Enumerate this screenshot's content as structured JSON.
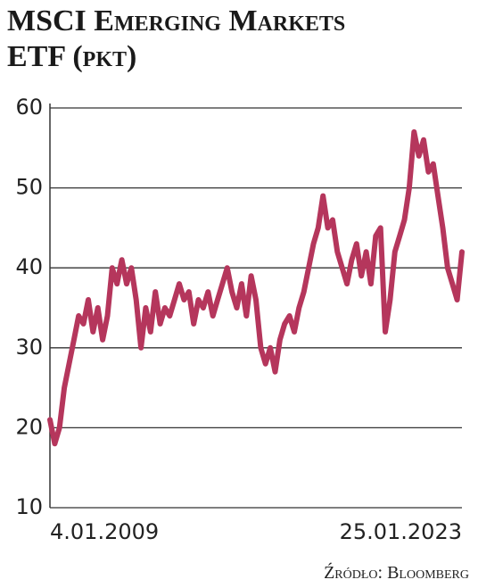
{
  "chart_data": {
    "type": "line",
    "title": [
      "MSCI Emerging Markets",
      "ETF (pkt)"
    ],
    "source": "Źródło: Bloomberg",
    "categories": [
      "4.01.2009",
      null,
      null,
      null,
      null,
      null,
      null,
      null,
      null,
      null,
      null,
      null,
      null,
      null,
      null,
      null,
      null,
      null,
      null,
      null,
      null,
      null,
      null,
      null,
      null,
      null,
      null,
      null,
      null,
      null,
      null,
      null,
      null,
      null,
      null,
      null,
      null,
      null,
      null,
      null,
      null,
      null,
      null,
      null,
      null,
      null,
      null,
      null,
      null,
      null,
      null,
      null,
      null,
      null,
      null,
      null,
      null,
      null,
      null,
      null,
      null,
      null,
      null,
      null,
      null,
      null,
      null,
      null,
      null,
      null,
      null,
      null,
      null,
      null,
      null,
      null,
      null,
      null,
      null,
      null,
      null,
      null,
      null,
      null,
      null,
      null,
      "25.01.2023"
    ],
    "series": [
      {
        "name": "MSCI Emerging Markets ETF",
        "color": "#b5365c",
        "values": [
          21,
          18,
          20,
          25,
          28,
          31,
          34,
          33,
          36,
          32,
          35,
          31,
          34,
          40,
          38,
          41,
          38,
          40,
          36,
          30,
          35,
          32,
          37,
          33,
          35,
          34,
          36,
          38,
          36,
          37,
          33,
          36,
          35,
          37,
          34,
          36,
          38,
          40,
          37,
          35,
          38,
          34,
          39,
          36,
          30,
          28,
          30,
          27,
          31,
          33,
          34,
          32,
          35,
          37,
          40,
          43,
          45,
          49,
          45,
          46,
          42,
          40,
          38,
          41,
          43,
          39,
          42,
          38,
          44,
          45,
          32,
          36,
          42,
          44,
          46,
          50,
          57,
          54,
          56,
          52,
          53,
          49,
          45,
          40,
          38,
          36,
          42
        ]
      }
    ],
    "ylim": [
      10,
      60
    ],
    "yticks": [
      10,
      20,
      30,
      40,
      50,
      60
    ],
    "grid": true
  }
}
